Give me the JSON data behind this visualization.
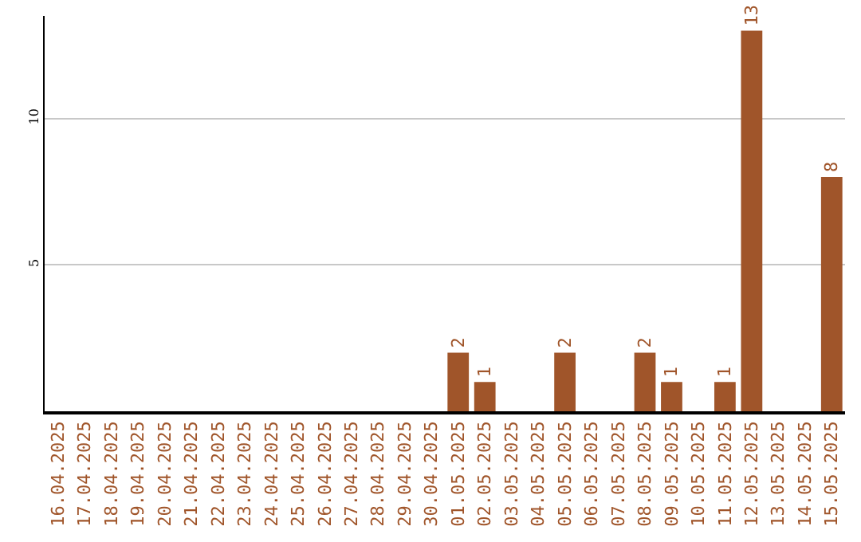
{
  "chart_data": {
    "type": "bar",
    "categories": [
      "16.04.2025",
      "17.04.2025",
      "18.04.2025",
      "19.04.2025",
      "20.04.2025",
      "21.04.2025",
      "22.04.2025",
      "23.04.2025",
      "24.04.2025",
      "25.04.2025",
      "26.04.2025",
      "27.04.2025",
      "28.04.2025",
      "29.04.2025",
      "30.04.2025",
      "01.05.2025",
      "02.05.2025",
      "03.05.2025",
      "04.05.2025",
      "05.05.2025",
      "06.05.2025",
      "07.05.2025",
      "08.05.2025",
      "09.05.2025",
      "10.05.2025",
      "11.05.2025",
      "12.05.2025",
      "13.05.2025",
      "14.05.2025",
      "15.05.2025"
    ],
    "values": [
      0,
      0,
      0,
      0,
      0,
      0,
      0,
      0,
      0,
      0,
      0,
      0,
      0,
      0,
      0,
      2,
      1,
      0,
      0,
      2,
      0,
      0,
      2,
      1,
      0,
      1,
      13,
      0,
      0,
      8
    ],
    "value_labels": [
      null,
      null,
      null,
      null,
      null,
      null,
      null,
      null,
      null,
      null,
      null,
      null,
      null,
      null,
      null,
      "2",
      "1",
      null,
      null,
      "2",
      null,
      null,
      "2",
      "1",
      null,
      "1",
      "13",
      null,
      null,
      "8"
    ],
    "color": "#a0552a",
    "ylim": [
      0,
      13.5
    ],
    "yticks": [
      5,
      10
    ],
    "grid": "y",
    "legend": false
  }
}
